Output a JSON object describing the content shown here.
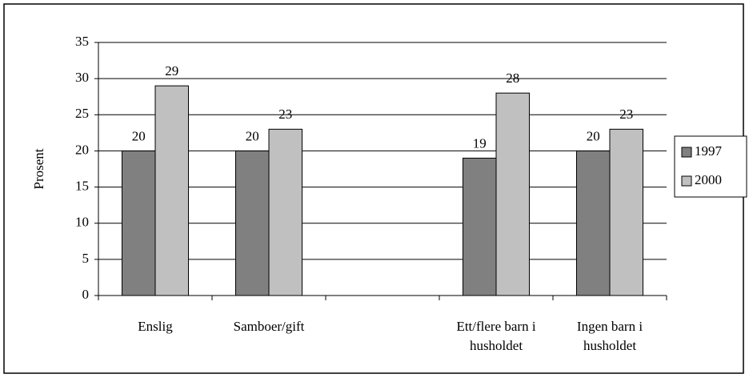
{
  "chart_data": {
    "type": "bar",
    "y_label": "Prosent",
    "categories": [
      "Enslig",
      "Samboer/gift",
      null,
      "Ett/flere barn i husholdet",
      "Ingen barn i husholdet"
    ],
    "series": [
      {
        "name": "1997",
        "color": "#808080",
        "values": [
          20,
          20,
          null,
          19,
          20
        ]
      },
      {
        "name": "2000",
        "color": "#c0c0c0",
        "values": [
          29,
          23,
          null,
          28,
          23
        ]
      }
    ],
    "ylim": [
      0,
      35
    ],
    "yticks": [
      0,
      5,
      10,
      15,
      20,
      25,
      30,
      35
    ],
    "grid": true,
    "legend": "right"
  }
}
